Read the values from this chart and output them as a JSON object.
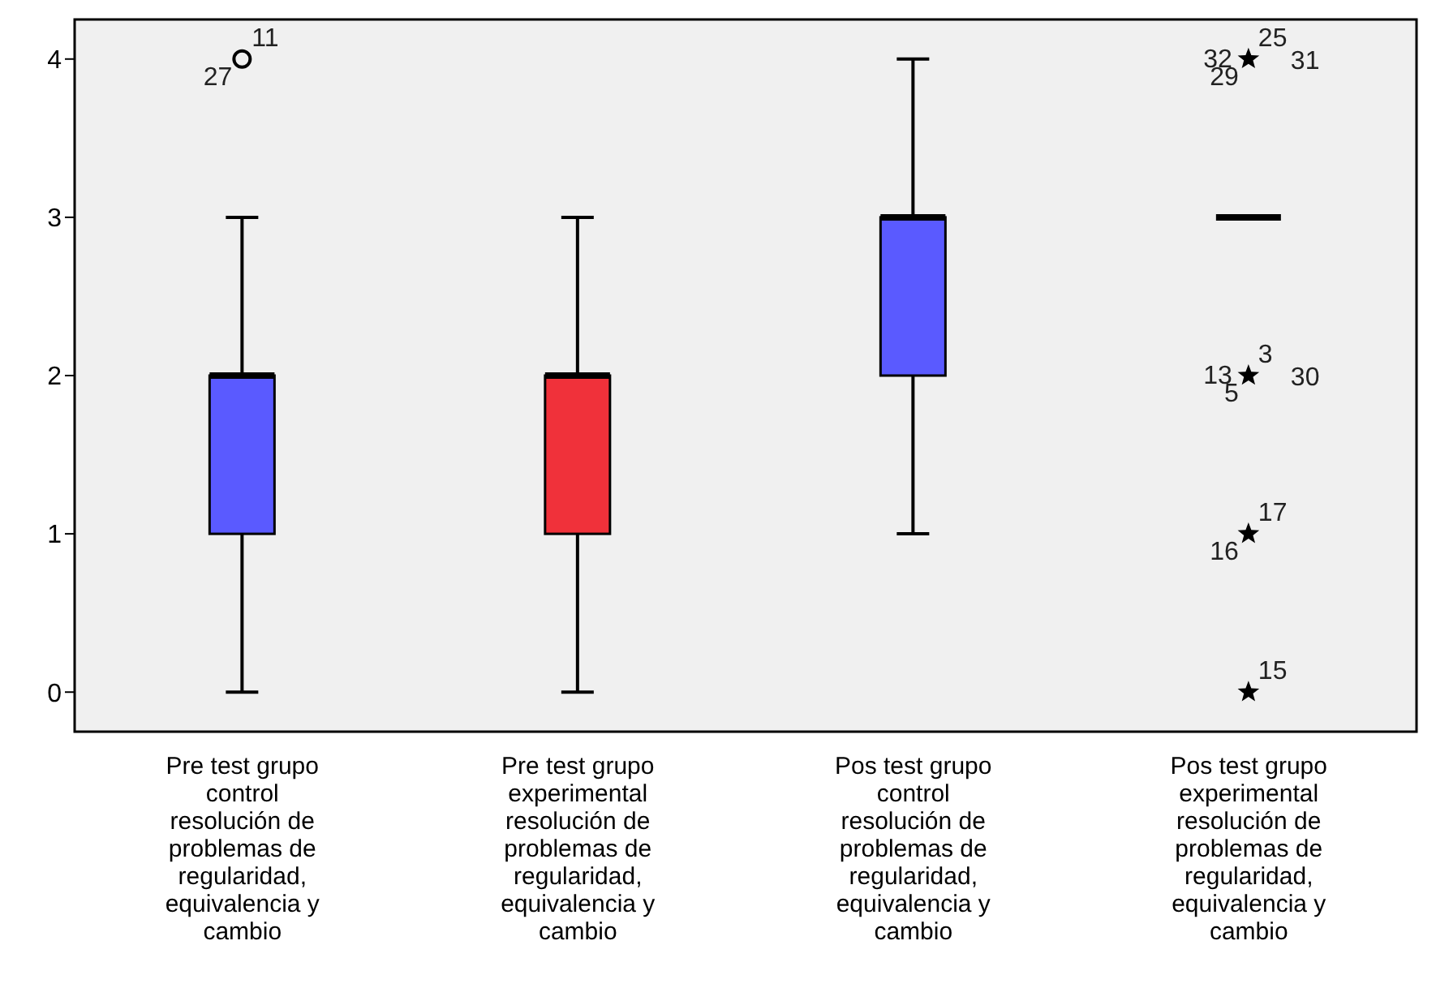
{
  "chart_data": {
    "type": "box",
    "categories": [
      "Pre test grupo control resolución de problemas de regularidad, equivalencia y cambio",
      "Pre test grupo experimental resolución de problemas de regularidad, equivalencia y cambio",
      "Pos test grupo control resolución de problemas de regularidad, equivalencia y cambio",
      "Pos test grupo experimental resolución de problemas de regularidad, equivalencia y cambio"
    ],
    "boxes": [
      {
        "low": 0,
        "q1": 1,
        "median": 2,
        "q3": 2,
        "high": 3
      },
      {
        "low": 0,
        "q1": 1,
        "median": 2,
        "q3": 2,
        "high": 3
      },
      {
        "low": 1,
        "q1": 2,
        "median": 3,
        "q3": 3,
        "high": 4
      },
      {
        "low": 3,
        "q1": 3,
        "median": 3,
        "q3": 3,
        "high": 3
      }
    ],
    "colors": [
      "#5a5aff",
      "#f0313a",
      "#5a5aff",
      "#000000"
    ],
    "series": [
      {
        "type": "scatter",
        "marker": "circle",
        "color": "#000000",
        "x": [
          "Pre test grupo control resolución de problemas de regularidad, equivalencia y cambio"
        ],
        "values": [
          4
        ]
      },
      {
        "type": "scatter",
        "marker": "star",
        "color": "#000000",
        "x": [
          "Pos test grupo experimental resolución de problemas de regularidad, equivalencia y cambio",
          "Pos test grupo experimental resolución de problemas de regularidad, equivalencia y cambio",
          "Pos test grupo experimental resolución de problemas de regularidad, equivalencia y cambio",
          "Pos test grupo experimental resolución de problemas de regularidad, equivalencia y cambio"
        ],
        "values": [
          4,
          2,
          1,
          0
        ]
      }
    ],
    "ylim": [
      -0.25,
      4.25
    ],
    "yticks": [
      0,
      1,
      2,
      3,
      4
    ],
    "grid": false,
    "legend": false,
    "annotations": [
      {
        "text": "11",
        "x": "Pre test grupo control resolución de problemas de regularidad, equivalencia y cambio",
        "y": 4
      },
      {
        "text": "27",
        "x": "Pre test grupo control resolución de problemas de regularidad, equivalencia y cambio",
        "y": 4
      },
      {
        "text": "25",
        "x": "Pos test grupo experimental resolución de problemas de regularidad, equivalencia y cambio",
        "y": 4
      },
      {
        "text": "29",
        "x": "Pos test grupo experimental resolución de problemas de regularidad, equivalencia y cambio",
        "y": 4
      },
      {
        "text": "32",
        "x": "Pos test grupo experimental resolución de problemas de regularidad, equivalencia y cambio",
        "y": 4
      },
      {
        "text": "31",
        "x": "Pos test grupo experimental resolución de problemas de regularidad, equivalencia y cambio",
        "y": 4
      },
      {
        "text": "3",
        "x": "Pos test grupo experimental resolución de problemas de regularidad, equivalencia y cambio",
        "y": 2
      },
      {
        "text": "5",
        "x": "Pos test grupo experimental resolución de problemas de regularidad, equivalencia y cambio",
        "y": 2
      },
      {
        "text": "13",
        "x": "Pos test grupo experimental resolución de problemas de regularidad, equivalencia y cambio",
        "y": 2
      },
      {
        "text": "30",
        "x": "Pos test grupo experimental resolución de problemas de regularidad, equivalencia y cambio",
        "y": 2
      },
      {
        "text": "17",
        "x": "Pos test grupo experimental resolución de problemas de regularidad, equivalencia y cambio",
        "y": 1
      },
      {
        "text": "16",
        "x": "Pos test grupo experimental resolución de problemas de regularidad, equivalencia y cambio",
        "y": 1
      },
      {
        "text": "15",
        "x": "Pos test grupo experimental resolución de problemas de regularidad, equivalencia y cambio",
        "y": 0
      }
    ]
  }
}
